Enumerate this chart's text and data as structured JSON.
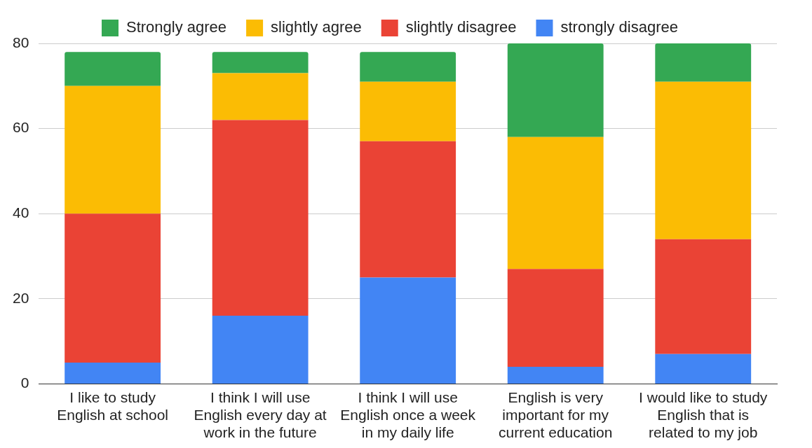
{
  "chart_data": {
    "type": "bar",
    "stacked": true,
    "categories": [
      "I like to study English at school",
      "I think I will use English every day at work in the future",
      "I think I will use English once a week in my daily life",
      "English is very important for my current education",
      "I would like to study English that is related to my job"
    ],
    "series": [
      {
        "name": "strongly disagree",
        "color": "#4285f4",
        "values": [
          5,
          16,
          25,
          4,
          7
        ]
      },
      {
        "name": "slightly disagree",
        "color": "#ea4335",
        "values": [
          35,
          46,
          32,
          23,
          27
        ]
      },
      {
        "name": "slightly agree",
        "color": "#fbbc04",
        "values": [
          30,
          11,
          14,
          31,
          37
        ]
      },
      {
        "name": "Strongly agree",
        "color": "#34a853",
        "values": [
          8,
          5,
          7,
          22,
          9
        ]
      }
    ],
    "ylim": [
      0,
      80
    ],
    "yticks": [
      0,
      20,
      40,
      60,
      80
    ],
    "grid": "y",
    "legend": "top"
  }
}
